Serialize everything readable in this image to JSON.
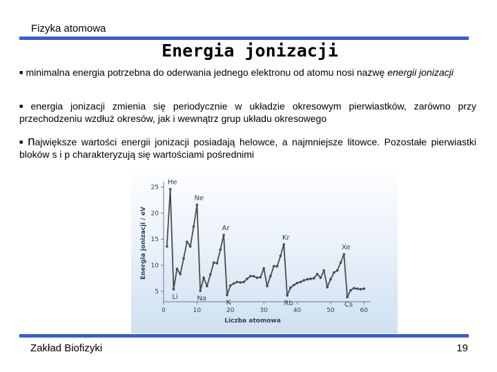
{
  "header": {
    "label": "Fizyka atomowa"
  },
  "title": "Energia jonizacji",
  "bullets": {
    "b1_text": "minimalna energia potrzebna do oderwania jednego elektronu od atomu nosi nazwę ",
    "b1_emph": "energii jonizacji",
    "b2": "energia jonizacji zmienia się periodycznie w układzie okresowym pierwiastków, zarówno przy przechodzeniu wzdłuż okresów, jak i wewnątrz grup układu okresowego",
    "b3_first": "n",
    "b3_rest": "ajwiększe wartości energii jonizacji posiadają helowce, a najmniejsze litowce. Pozostałe pierwiastki bloków s i p charakteryzują się wartościami pośrednimi"
  },
  "footer": {
    "left": "Zakład Biofizyki",
    "page": "19"
  },
  "colors": {
    "accent": "#3a5fcf",
    "chart_line": "#4a4a4a",
    "chart_text": "#2e3f5c"
  },
  "chart_data": {
    "type": "line",
    "xlabel": "Liczba atomowa",
    "ylabel": "Energia jonizacji / eV",
    "xlim": [
      0,
      62
    ],
    "ylim": [
      3,
      26
    ],
    "xticks": [
      0,
      10,
      20,
      30,
      40,
      50,
      60
    ],
    "yticks": [
      5,
      10,
      15,
      20,
      25
    ],
    "series": [
      {
        "x": [
          1,
          2,
          3,
          4,
          5,
          6,
          7,
          8,
          9,
          10,
          11,
          12,
          13,
          14,
          15,
          16,
          17,
          18,
          19,
          20,
          21,
          22,
          23,
          24,
          25,
          26,
          27,
          28,
          29,
          30,
          31,
          32,
          33,
          34,
          35,
          36,
          37,
          38,
          39,
          40,
          41,
          42,
          43,
          44,
          45,
          46,
          47,
          48,
          49,
          50,
          51,
          52,
          53,
          54,
          55,
          56,
          57,
          58,
          59,
          60
        ],
        "y": [
          13.6,
          24.6,
          5.4,
          9.3,
          8.3,
          11.3,
          14.5,
          13.6,
          17.4,
          21.6,
          5.1,
          7.6,
          6.0,
          8.2,
          10.5,
          10.4,
          13.0,
          15.8,
          4.3,
          6.1,
          6.5,
          6.8,
          6.7,
          6.8,
          7.4,
          7.9,
          7.9,
          7.6,
          7.7,
          9.4,
          6.0,
          7.9,
          9.8,
          9.8,
          11.8,
          14.0,
          4.2,
          5.7,
          6.2,
          6.6,
          6.8,
          7.1,
          7.3,
          7.4,
          7.5,
          8.3,
          7.6,
          9.0,
          5.8,
          7.3,
          8.6,
          9.0,
          10.5,
          12.1,
          3.9,
          5.2,
          5.6,
          5.5,
          5.4,
          5.5
        ]
      }
    ],
    "annotations": [
      {
        "label": "He",
        "x": 2,
        "y": 24.6
      },
      {
        "label": "Ne",
        "x": 10,
        "y": 21.6
      },
      {
        "label": "Ar",
        "x": 18,
        "y": 15.8
      },
      {
        "label": "Kr",
        "x": 36,
        "y": 14.0
      },
      {
        "label": "Xe",
        "x": 54,
        "y": 12.1
      },
      {
        "label": "Li",
        "x": 3,
        "y": 5.4
      },
      {
        "label": "Na",
        "x": 11,
        "y": 5.1
      },
      {
        "label": "K",
        "x": 19,
        "y": 4.3
      },
      {
        "label": "Rb",
        "x": 37,
        "y": 4.2
      },
      {
        "label": "Cs",
        "x": 55,
        "y": 3.9
      }
    ]
  }
}
